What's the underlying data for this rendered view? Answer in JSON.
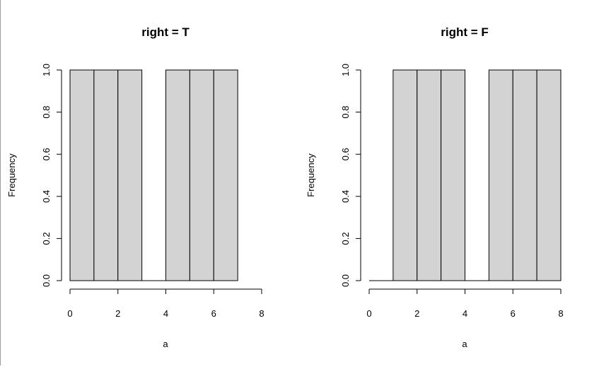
{
  "chart_data": [
    {
      "type": "bar",
      "title": "right = T",
      "xlabel": "a",
      "ylabel": "Frequency",
      "bins": [
        [
          0,
          1
        ],
        [
          1,
          2
        ],
        [
          2,
          3
        ],
        [
          3,
          4
        ],
        [
          4,
          5
        ],
        [
          5,
          6
        ],
        [
          6,
          7
        ]
      ],
      "values": [
        1,
        1,
        1,
        0,
        1,
        1,
        1
      ],
      "xlim": [
        0,
        8
      ],
      "ylim": [
        0,
        1
      ],
      "xticks": [
        "0",
        "2",
        "4",
        "6",
        "8"
      ],
      "yticks": [
        "0.0",
        "0.2",
        "0.4",
        "0.6",
        "0.8",
        "1.0"
      ],
      "grid": false,
      "bar_color": "#d3d3d3"
    },
    {
      "type": "bar",
      "title": "right = F",
      "xlabel": "a",
      "ylabel": "Frequency",
      "bins": [
        [
          0,
          1
        ],
        [
          1,
          2
        ],
        [
          2,
          3
        ],
        [
          3,
          4
        ],
        [
          4,
          5
        ],
        [
          5,
          6
        ],
        [
          6,
          7
        ],
        [
          7,
          8
        ]
      ],
      "values": [
        0,
        1,
        1,
        1,
        0,
        1,
        1,
        1
      ],
      "xlim": [
        0,
        8
      ],
      "ylim": [
        0,
        1
      ],
      "xticks": [
        "0",
        "2",
        "4",
        "6",
        "8"
      ],
      "yticks": [
        "0.0",
        "0.2",
        "0.4",
        "0.6",
        "0.8",
        "1.0"
      ],
      "grid": false,
      "bar_color": "#d3d3d3"
    }
  ]
}
